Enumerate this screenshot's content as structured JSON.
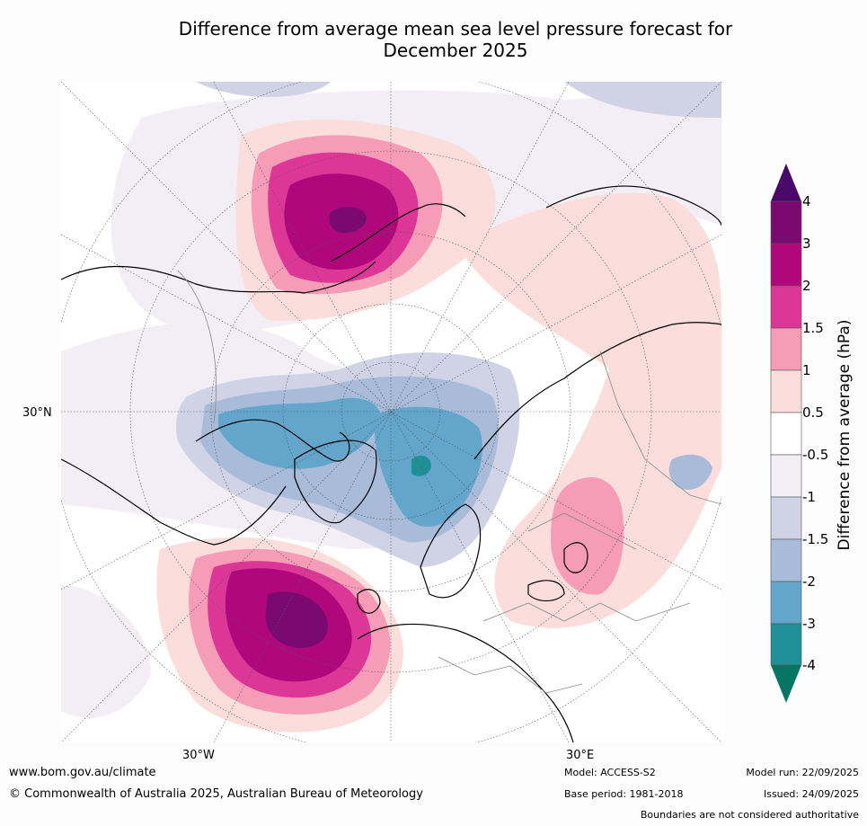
{
  "title": {
    "line1": "Difference from average mean sea level pressure forecast for",
    "line2": "December 2025"
  },
  "map": {
    "projection": "polar-stereographic-north",
    "lat_label": "30°N",
    "lon_label_west": "30°W",
    "lon_label_east": "30°E"
  },
  "colorbar": {
    "title": "Difference from average (hPa)",
    "ticks": [
      "4",
      "3",
      "2",
      "1.5",
      "1",
      "0.5",
      "-0.5",
      "-1",
      "-1.5",
      "-2",
      "-3",
      "-4"
    ],
    "colors": {
      "above_4": "#4a0868",
      "3_to_4": "#7a0a70",
      "2_to_3": "#b0087c",
      "1.5_to_2": "#dc3796",
      "1_to_1.5": "#f79cb8",
      "0.5_to_1": "#fbdedc",
      "-0.5_to_0.5": "#ffffff",
      "-1_to_-0.5": "#f3eef5",
      "-1.5_to_-1": "#d0d3e6",
      "-2_to_-1.5": "#a8bbd8",
      "-3_to_-2": "#64a6cb",
      "-4_to_-3": "#1e9096",
      "below_-4": "#077563"
    }
  },
  "footer": {
    "website": "www.bom.gov.au/climate",
    "copyright": "© Commonwealth of Australia 2025, Australian Bureau of Meteorology",
    "model": "Model: ACCESS-S2",
    "base_period": "Base period: 1981-2018",
    "model_run": "Model run: 22/09/2025",
    "issued": "Issued: 24/09/2025",
    "disclaimer": "Boundaries are not considered authoritative"
  }
}
